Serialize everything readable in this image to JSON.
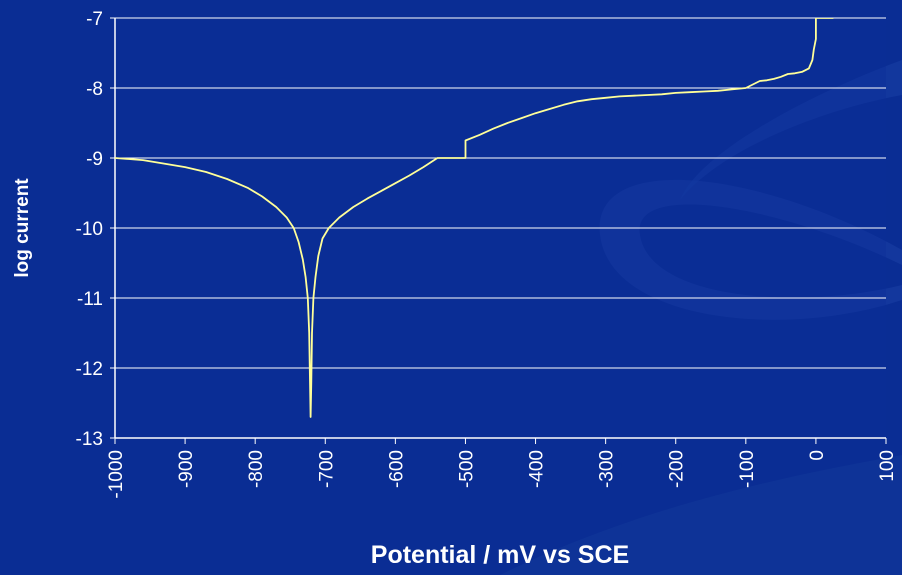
{
  "colors": {
    "background": "#0a2d94",
    "plot_area": "#0c2e97",
    "swoosh": "#153a9f",
    "gridline": "#ffffff",
    "series": "#ffff99",
    "text": "#ffffff"
  },
  "chart_data": {
    "type": "line",
    "title": "",
    "xlabel": "Potential / mV vs SCE",
    "ylabel": "log current",
    "xlim": [
      -1000,
      100
    ],
    "ylim": [
      -13,
      -7
    ],
    "x_ticks": [
      -1000,
      -900,
      -800,
      -700,
      -600,
      -500,
      -400,
      -300,
      -200,
      -100,
      0,
      100
    ],
    "x_tick_labels": [
      "-1000",
      "-900",
      "-800",
      "-700",
      "-600",
      "-500",
      "-400",
      "-300",
      "-200",
      "-100",
      "0",
      "100"
    ],
    "y_ticks": [
      -7,
      -8,
      -9,
      -10,
      -11,
      -12,
      -13
    ],
    "y_tick_labels": [
      "-7",
      "-8",
      "-9",
      "-10",
      "-11",
      "-12",
      "-13"
    ],
    "grid": "horizontal",
    "legend": "none",
    "series": [
      {
        "color": "#ffff99",
        "points": [
          [
            -1000,
            -9.0
          ],
          [
            -960,
            -9.03
          ],
          [
            -930,
            -9.08
          ],
          [
            -900,
            -9.13
          ],
          [
            -870,
            -9.2
          ],
          [
            -840,
            -9.3
          ],
          [
            -810,
            -9.43
          ],
          [
            -790,
            -9.55
          ],
          [
            -770,
            -9.7
          ],
          [
            -755,
            -9.85
          ],
          [
            -745,
            -10.0
          ],
          [
            -738,
            -10.2
          ],
          [
            -732,
            -10.45
          ],
          [
            -728,
            -10.7
          ],
          [
            -725,
            -11.0
          ],
          [
            -723,
            -11.5
          ],
          [
            -722,
            -12.1
          ],
          [
            -721,
            -12.7
          ],
          [
            -720,
            -12.2
          ],
          [
            -719,
            -11.5
          ],
          [
            -717,
            -11.0
          ],
          [
            -714,
            -10.7
          ],
          [
            -710,
            -10.4
          ],
          [
            -704,
            -10.15
          ],
          [
            -695,
            -10.0
          ],
          [
            -680,
            -9.85
          ],
          [
            -660,
            -9.7
          ],
          [
            -640,
            -9.58
          ],
          [
            -620,
            -9.47
          ],
          [
            -600,
            -9.36
          ],
          [
            -580,
            -9.25
          ],
          [
            -560,
            -9.13
          ],
          [
            -540,
            -9.0
          ],
          [
            -500,
            -9.0
          ],
          [
            -500,
            -8.75
          ],
          [
            -480,
            -8.67
          ],
          [
            -460,
            -8.58
          ],
          [
            -440,
            -8.5
          ],
          [
            -420,
            -8.43
          ],
          [
            -400,
            -8.36
          ],
          [
            -380,
            -8.3
          ],
          [
            -360,
            -8.24
          ],
          [
            -340,
            -8.19
          ],
          [
            -320,
            -8.16
          ],
          [
            -300,
            -8.14
          ],
          [
            -280,
            -8.12
          ],
          [
            -260,
            -8.11
          ],
          [
            -240,
            -8.1
          ],
          [
            -220,
            -8.09
          ],
          [
            -200,
            -8.07
          ],
          [
            -180,
            -8.06
          ],
          [
            -160,
            -8.05
          ],
          [
            -140,
            -8.04
          ],
          [
            -120,
            -8.02
          ],
          [
            -100,
            -8.0
          ],
          [
            -90,
            -7.95
          ],
          [
            -80,
            -7.9
          ],
          [
            -70,
            -7.89
          ],
          [
            -60,
            -7.87
          ],
          [
            -50,
            -7.84
          ],
          [
            -40,
            -7.8
          ],
          [
            -30,
            -7.79
          ],
          [
            -20,
            -7.77
          ],
          [
            -10,
            -7.72
          ],
          [
            -5,
            -7.6
          ],
          [
            -3,
            -7.45
          ],
          [
            0,
            -7.3
          ],
          [
            0,
            -7.0
          ],
          [
            25,
            -7.0
          ]
        ]
      }
    ]
  }
}
